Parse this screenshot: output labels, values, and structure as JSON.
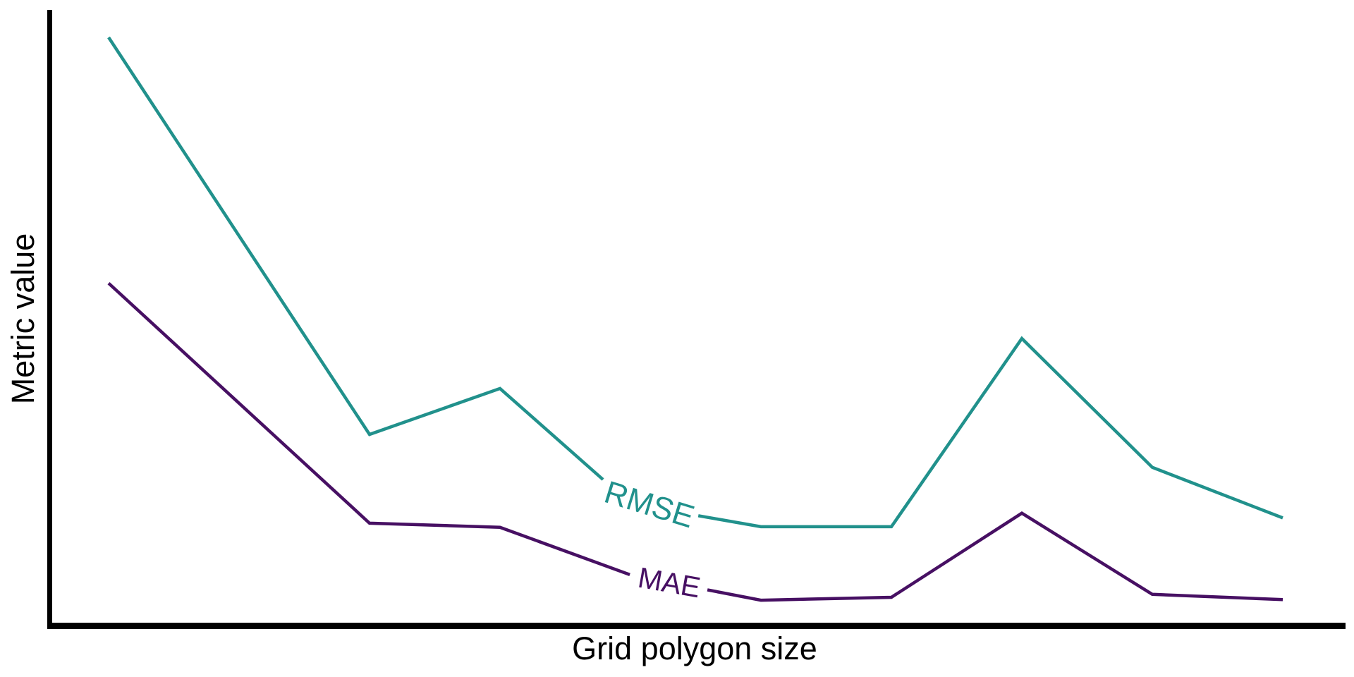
{
  "figure": {
    "background_color": "#ffffff",
    "axis_color": "#000000",
    "tick_labels_visible": false,
    "gridlines": false,
    "legend": "inline labels placed on the lines"
  },
  "chart_data": {
    "type": "line",
    "title": "",
    "xlabel": "Grid polygon size",
    "ylabel": "Metric value",
    "x_axis": {
      "tick_labels": [],
      "note": "no tick labels shown; positions are even grid-size steps",
      "range_units": [
        0,
        9.5
      ]
    },
    "y_axis": {
      "tick_labels": [],
      "note": "no tick labels shown; values normalized to max of RMSE curve",
      "range_norm": [
        0,
        1.05
      ]
    },
    "series": [
      {
        "name": "RMSE",
        "color": "#21918c",
        "stroke_width": 4.5,
        "x_units": [
          0,
          2,
          3,
          4,
          5,
          6,
          7,
          8,
          9
        ],
        "values_norm": [
          1.0,
          0.325,
          0.403,
          0.207,
          0.168,
          0.168,
          0.488,
          0.269,
          0.183
        ],
        "label": {
          "text": "RMSE",
          "gap_x_units": [
            3.79,
            4.52
          ],
          "angle_deg": 17
        }
      },
      {
        "name": "MAE",
        "color": "#471063",
        "stroke_width": 4.5,
        "x_units": [
          0,
          2,
          3,
          4,
          5,
          6,
          7,
          8,
          9
        ],
        "values_norm": [
          0.582,
          0.174,
          0.167,
          0.086,
          0.043,
          0.048,
          0.191,
          0.053,
          0.044
        ],
        "label": {
          "text": "MAE",
          "gap_x_units": [
            3.995,
            4.59
          ],
          "angle_deg": 10
        }
      }
    ]
  }
}
